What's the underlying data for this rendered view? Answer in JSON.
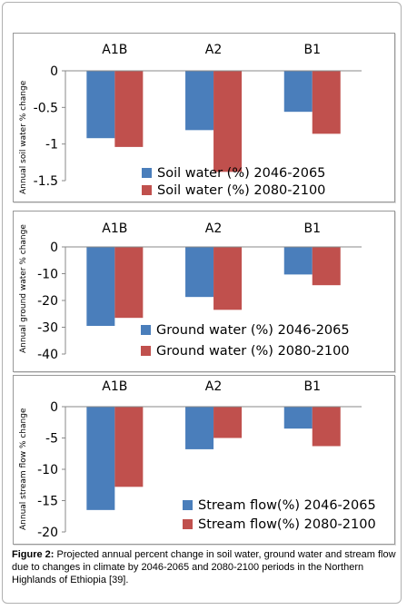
{
  "colors": {
    "series1": "#4a7ebb",
    "series2": "#c0504d"
  },
  "caption": {
    "label": "Figure 2:",
    "text": "Projected annual percent change in soil water, ground water and stream flow due to changes in climate by 2046-2065 and 2080-2100 periods in the Northern Highlands of Ethiopia [39]."
  },
  "chart_data": [
    {
      "type": "bar",
      "ylabel": "Annual soil water % change",
      "categories": [
        "A1B",
        "A2",
        "B1"
      ],
      "ylim": [
        -1.5,
        0
      ],
      "yticks": [
        0,
        -0.5,
        -1,
        -1.5
      ],
      "series": [
        {
          "name": "Soil water (%) 2046-2065",
          "values": [
            -0.92,
            -0.81,
            -0.56
          ]
        },
        {
          "name": "Soil water (%) 2080-2100",
          "values": [
            -1.04,
            -1.38,
            -0.86
          ]
        }
      ]
    },
    {
      "type": "bar",
      "ylabel": "Annual ground water % change",
      "categories": [
        "A1B",
        "A2",
        "B1"
      ],
      "ylim": [
        -40,
        0
      ],
      "yticks": [
        0,
        -10,
        -20,
        -30,
        -40
      ],
      "series": [
        {
          "name": "Ground water (%) 2046-2065",
          "values": [
            -29.5,
            -18.7,
            -10.3
          ]
        },
        {
          "name": "Ground water (%) 2080-2100",
          "values": [
            -26.5,
            -23.5,
            -14.3
          ]
        }
      ]
    },
    {
      "type": "bar",
      "ylabel": "Annual stream flow % change",
      "categories": [
        "A1B",
        "A2",
        "B1"
      ],
      "ylim": [
        -20,
        0
      ],
      "yticks": [
        0,
        -5,
        -10,
        -15,
        -20
      ],
      "series": [
        {
          "name": "Stream flow(%) 2046-2065",
          "values": [
            -16.5,
            -6.8,
            -3.5
          ]
        },
        {
          "name": "Stream flow(%) 2080-2100",
          "values": [
            -12.8,
            -5.0,
            -6.3
          ]
        }
      ]
    }
  ]
}
